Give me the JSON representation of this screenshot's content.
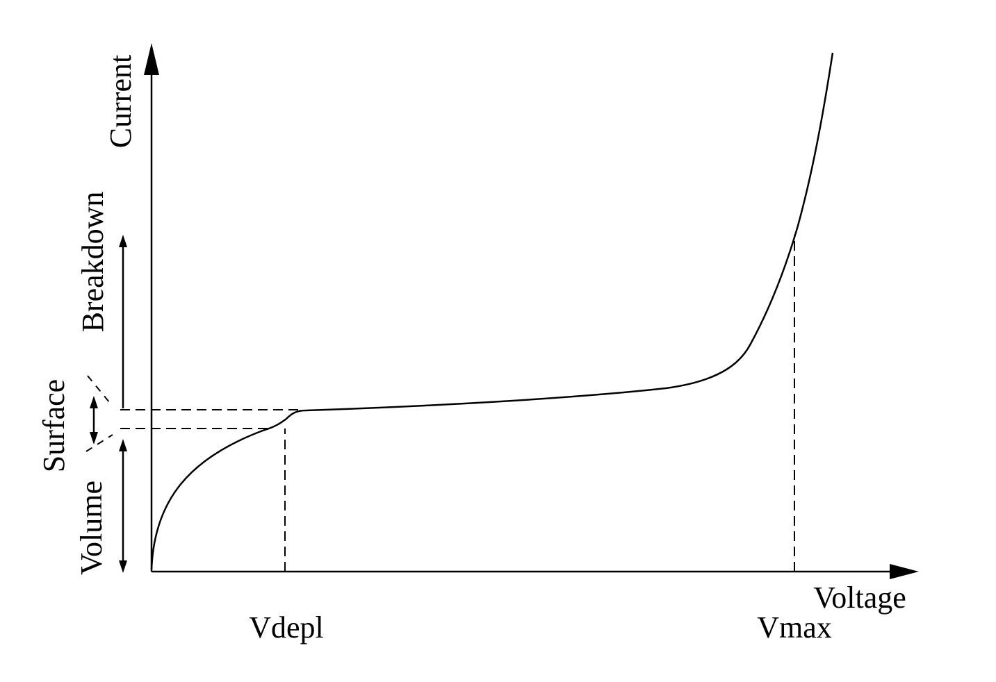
{
  "diagram": {
    "labels": {
      "y_axis": "Current",
      "x_axis": "Voltage",
      "breakdown": "Breakdown",
      "surface": "Surface",
      "volume": "Volume",
      "vdepl": "Vdepl",
      "vmax": "Vmax"
    },
    "colors": {
      "stroke": "#000000",
      "background": "#ffffff"
    }
  }
}
